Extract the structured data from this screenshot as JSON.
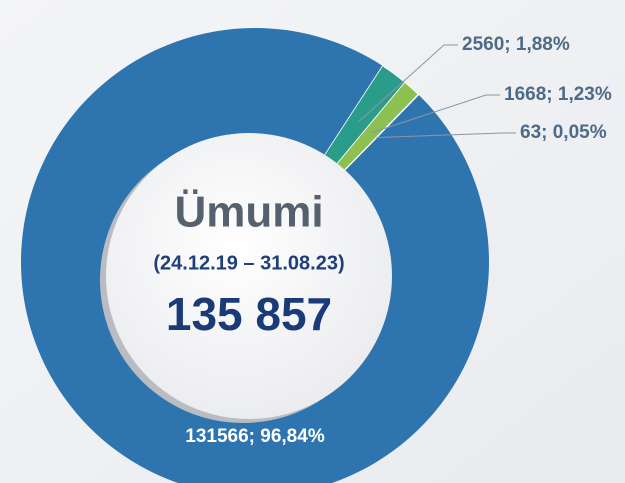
{
  "chart_data": {
    "type": "donut",
    "center_title": "Ümumi",
    "center_subtitle": "(24.12.19 – 31.08.23)",
    "center_total": "135 857",
    "categories": [
      null,
      null,
      null,
      null
    ],
    "values": [
      131566,
      2560,
      1668,
      63
    ],
    "value_labels": [
      "131566; 96,84%",
      "2560; 1,88%",
      "1668; 1,23%",
      "63; 0,05%"
    ],
    "colors": [
      "#2e75b0",
      "#2a9d8a",
      "#8cc152",
      "#b5d98a"
    ]
  }
}
